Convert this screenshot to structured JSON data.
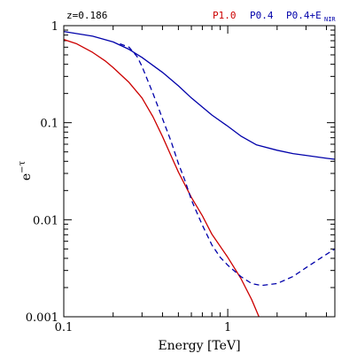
{
  "chart_data": {
    "type": "line",
    "annotation": "z=0.186",
    "xlabel": "Energy [TeV]",
    "ylabel": "e",
    "ylabel_sup": "−τ",
    "xscale": "log",
    "yscale": "log",
    "xlim": [
      0.1,
      4.5
    ],
    "ylim": [
      0.001,
      1
    ],
    "x_ticks": [
      {
        "value": 0.1,
        "label": "0.1"
      },
      {
        "value": 1,
        "label": "1"
      }
    ],
    "y_ticks": [
      {
        "value": 1,
        "label": "1"
      },
      {
        "value": 0.1,
        "label": "0.1"
      },
      {
        "value": 0.01,
        "label": "0.01"
      },
      {
        "value": 0.001,
        "label": "0.001"
      }
    ],
    "legend": [
      {
        "label": "P1.0",
        "color": "#cc0000"
      },
      {
        "label": "P0.4",
        "color": "#0000aa"
      },
      {
        "label": "P0.4+E",
        "sub": "NIR",
        "color": "#0000aa"
      }
    ],
    "series": [
      {
        "name": "P1.0",
        "color": "#cc0000",
        "dash": false,
        "points": [
          [
            0.1,
            0.72
          ],
          [
            0.12,
            0.65
          ],
          [
            0.15,
            0.53
          ],
          [
            0.18,
            0.43
          ],
          [
            0.2,
            0.37
          ],
          [
            0.25,
            0.26
          ],
          [
            0.3,
            0.18
          ],
          [
            0.35,
            0.115
          ],
          [
            0.4,
            0.072
          ],
          [
            0.45,
            0.046
          ],
          [
            0.5,
            0.031
          ],
          [
            0.6,
            0.017
          ],
          [
            0.7,
            0.011
          ],
          [
            0.8,
            0.0071
          ],
          [
            1.0,
            0.0041
          ],
          [
            1.2,
            0.0025
          ],
          [
            1.4,
            0.0015
          ],
          [
            1.55,
            0.001
          ]
        ]
      },
      {
        "name": "P0.4",
        "color": "#0000aa",
        "dash": false,
        "points": [
          [
            0.1,
            0.87
          ],
          [
            0.15,
            0.78
          ],
          [
            0.2,
            0.68
          ],
          [
            0.25,
            0.57
          ],
          [
            0.3,
            0.47
          ],
          [
            0.4,
            0.33
          ],
          [
            0.5,
            0.24
          ],
          [
            0.6,
            0.18
          ],
          [
            0.7,
            0.145
          ],
          [
            0.8,
            0.12
          ],
          [
            1.0,
            0.092
          ],
          [
            1.2,
            0.073
          ],
          [
            1.5,
            0.059
          ],
          [
            2.0,
            0.052
          ],
          [
            2.5,
            0.048
          ],
          [
            3.0,
            0.046
          ],
          [
            4.0,
            0.043
          ],
          [
            4.5,
            0.042
          ]
        ]
      },
      {
        "name": "P0.4+E_NIR",
        "color": "#0000aa",
        "dash": true,
        "points": [
          [
            0.22,
            0.65
          ],
          [
            0.25,
            0.6
          ],
          [
            0.28,
            0.48
          ],
          [
            0.3,
            0.38
          ],
          [
            0.35,
            0.2
          ],
          [
            0.4,
            0.11
          ],
          [
            0.45,
            0.065
          ],
          [
            0.5,
            0.038
          ],
          [
            0.55,
            0.025
          ],
          [
            0.6,
            0.016
          ],
          [
            0.7,
            0.0088
          ],
          [
            0.8,
            0.0055
          ],
          [
            0.9,
            0.0041
          ],
          [
            1.0,
            0.0034
          ],
          [
            1.2,
            0.0026
          ],
          [
            1.4,
            0.0022
          ],
          [
            1.6,
            0.0021
          ],
          [
            2.0,
            0.0022
          ],
          [
            2.5,
            0.0026
          ],
          [
            3.0,
            0.0032
          ],
          [
            3.5,
            0.0038
          ],
          [
            4.0,
            0.0044
          ],
          [
            4.5,
            0.005
          ]
        ]
      }
    ]
  }
}
